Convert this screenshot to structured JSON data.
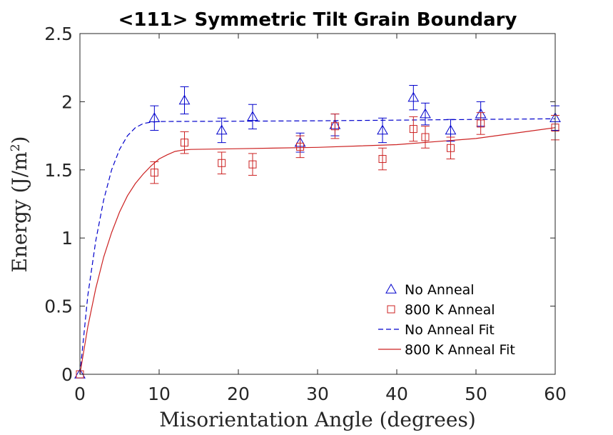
{
  "chart_data": {
    "type": "scatter",
    "title": "<111> Symmetric Tilt Grain Boundary",
    "xlabel": "Misorientation Angle (degrees)",
    "ylabel_main": "Energy (J/m",
    "ylabel_sup": "2",
    "ylabel_close": ")",
    "xlim": [
      0,
      60
    ],
    "ylim": [
      0,
      2.5
    ],
    "xticks": [
      0,
      10,
      20,
      30,
      40,
      50,
      60
    ],
    "yticks": [
      0,
      0.5,
      1,
      1.5,
      2,
      2.5
    ],
    "xtick_labels": [
      "0",
      "10",
      "20",
      "30",
      "40",
      "50",
      "60"
    ],
    "ytick_labels": [
      "0",
      "0.5",
      "1",
      "1.5",
      "2",
      "2.5"
    ],
    "grid": false,
    "legend_position": "bottom-right",
    "series": [
      {
        "name": "No Anneal",
        "kind": "points",
        "marker": "triangle",
        "color": "#0000cc",
        "x": [
          0,
          9.4,
          13.2,
          17.9,
          21.8,
          27.8,
          32.2,
          38.2,
          42.1,
          43.6,
          46.8,
          50.6,
          60.0
        ],
        "y": [
          0,
          1.88,
          2.01,
          1.79,
          1.89,
          1.7,
          1.83,
          1.79,
          2.03,
          1.91,
          1.79,
          1.91,
          1.88
        ],
        "err": [
          0,
          0.09,
          0.1,
          0.09,
          0.09,
          0.07,
          0.08,
          0.09,
          0.09,
          0.08,
          0.08,
          0.09,
          0.09
        ]
      },
      {
        "name": "800 K Anneal",
        "kind": "points",
        "marker": "square",
        "color": "#cc2222",
        "x": [
          0,
          9.4,
          13.2,
          17.9,
          21.8,
          27.8,
          32.2,
          38.2,
          42.1,
          43.6,
          46.8,
          50.6,
          60.0
        ],
        "y": [
          0,
          1.48,
          1.7,
          1.55,
          1.54,
          1.67,
          1.82,
          1.58,
          1.8,
          1.74,
          1.66,
          1.84,
          1.81
        ],
        "err": [
          0,
          0.08,
          0.08,
          0.08,
          0.08,
          0.08,
          0.09,
          0.08,
          0.09,
          0.08,
          0.08,
          0.08,
          0.09
        ]
      },
      {
        "name": "No Anneal Fit",
        "kind": "line",
        "dash": "dashed",
        "color": "#0000cc",
        "x": [
          0,
          1,
          2,
          3,
          4,
          5,
          6,
          7,
          8,
          9,
          10,
          20,
          30,
          40,
          50,
          60
        ],
        "y": [
          0,
          0.58,
          0.98,
          1.28,
          1.5,
          1.65,
          1.75,
          1.81,
          1.84,
          1.85,
          1.855,
          1.857,
          1.86,
          1.865,
          1.87,
          1.875
        ]
      },
      {
        "name": "800 K Anneal Fit",
        "kind": "line",
        "dash": "solid",
        "color": "#cc2222",
        "x": [
          0,
          1,
          2,
          3,
          4,
          5,
          6,
          7,
          8,
          9,
          10,
          11,
          12,
          13,
          14,
          20,
          30,
          40,
          50,
          60
        ],
        "y": [
          0,
          0.35,
          0.63,
          0.86,
          1.04,
          1.19,
          1.31,
          1.4,
          1.47,
          1.53,
          1.58,
          1.61,
          1.635,
          1.645,
          1.65,
          1.655,
          1.665,
          1.685,
          1.73,
          1.81
        ]
      }
    ],
    "legend": [
      {
        "label": "No Anneal",
        "symbol": "triangle",
        "color": "#0000cc"
      },
      {
        "label": "800 K Anneal",
        "symbol": "square",
        "color": "#cc2222"
      },
      {
        "label": "No Anneal Fit",
        "symbol": "dashed-line",
        "color": "#0000cc"
      },
      {
        "label": "800 K Anneal Fit",
        "symbol": "solid-line",
        "color": "#cc2222"
      }
    ]
  }
}
